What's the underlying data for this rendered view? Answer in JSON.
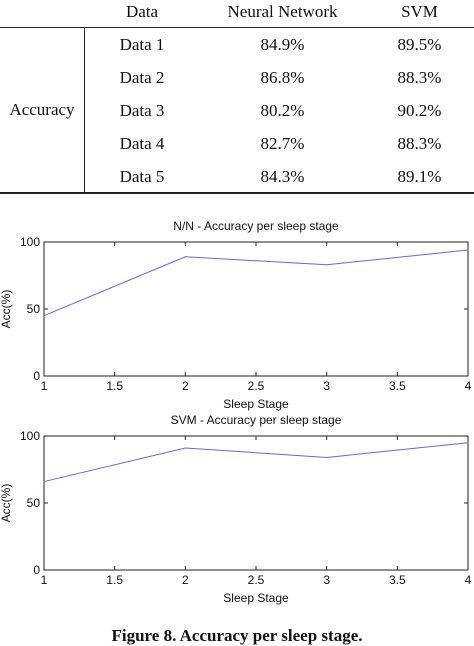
{
  "table": {
    "headers": [
      "",
      "Data",
      "Neural Network",
      "SVM"
    ],
    "row_label": "Accuracy",
    "rows": [
      {
        "data": "Data 1",
        "nn": "84.9%",
        "svm": "89.5%"
      },
      {
        "data": "Data 2",
        "nn": "86.8%",
        "svm": "88.3%"
      },
      {
        "data": "Data 3",
        "nn": "80.2%",
        "svm": "90.2%"
      },
      {
        "data": "Data 4",
        "nn": "82.7%",
        "svm": "88.3%"
      },
      {
        "data": "Data 5",
        "nn": "84.3%",
        "svm": "89.1%"
      }
    ]
  },
  "chart_data": [
    {
      "type": "line",
      "title": "N/N - Accuracy per sleep stage",
      "xlabel": "Sleep Stage",
      "ylabel": "Acc(%)",
      "xlim": [
        1,
        4
      ],
      "ylim": [
        0,
        100
      ],
      "x_ticks": [
        "1",
        "1.5",
        "2",
        "2.5",
        "3",
        "3.5",
        "4"
      ],
      "y_ticks": [
        "0",
        "50",
        "100"
      ],
      "x": [
        1,
        2,
        3,
        4
      ],
      "series": [
        {
          "values": [
            45,
            89,
            83,
            94
          ]
        }
      ],
      "line_color": "#6666dd"
    },
    {
      "type": "line",
      "title": "SVM - Accuracy per sleep stage",
      "xlabel": "Sleep Stage",
      "ylabel": "Acc(%)",
      "xlim": [
        1,
        4
      ],
      "ylim": [
        0,
        100
      ],
      "x_ticks": [
        "1",
        "1.5",
        "2",
        "2.5",
        "3",
        "3.5",
        "4"
      ],
      "y_ticks": [
        "0",
        "50",
        "100"
      ],
      "x": [
        1,
        2,
        3,
        4
      ],
      "series": [
        {
          "values": [
            66,
            91,
            84,
            95
          ]
        }
      ],
      "line_color": "#6666dd"
    }
  ],
  "caption": "Figure 8. Accuracy per sleep stage."
}
